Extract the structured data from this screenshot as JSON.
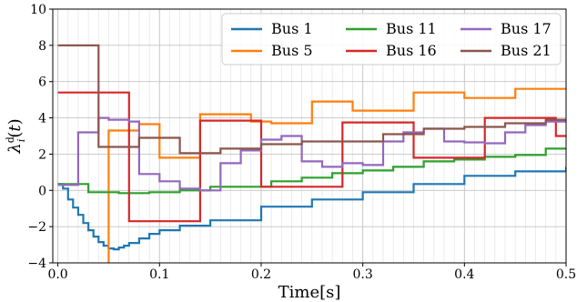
{
  "chart_data": {
    "type": "line",
    "step": true,
    "xlabel": "Time[s]",
    "ylabel": "λ_i^d(t)",
    "xlim": [
      -0.005,
      0.5
    ],
    "ylim": [
      -4,
      10
    ],
    "xticks": [
      0.0,
      0.1,
      0.2,
      0.3,
      0.4,
      0.5
    ],
    "xtick_labels": [
      "0.0",
      "0.1",
      "0.2",
      "0.3",
      "0.4",
      "0.5"
    ],
    "yticks": [
      -4,
      -2,
      0,
      2,
      4,
      6,
      8,
      10
    ],
    "ytick_labels": [
      "−4",
      "−2",
      "0",
      "2",
      "4",
      "6",
      "8",
      "10"
    ],
    "minor_x_step": 0.01,
    "grid": true,
    "legend": {
      "location": "top-right",
      "columns": 3
    },
    "series": [
      {
        "name": "Bus 1",
        "color": "#1f77b4",
        "x": [
          0,
          0.005,
          0.01,
          0.015,
          0.02,
          0.025,
          0.03,
          0.035,
          0.04,
          0.045,
          0.05,
          0.055,
          0.06,
          0.065,
          0.07,
          0.08,
          0.09,
          0.1,
          0.12,
          0.15,
          0.2,
          0.25,
          0.3,
          0.35,
          0.4,
          0.45,
          0.5
        ],
        "y": [
          0.35,
          0.1,
          -0.5,
          -0.95,
          -1.35,
          -1.8,
          -2.2,
          -2.55,
          -2.85,
          -3.05,
          -3.2,
          -3.25,
          -3.15,
          -3.05,
          -2.9,
          -2.65,
          -2.4,
          -2.2,
          -1.95,
          -1.65,
          -0.9,
          -0.5,
          -0.1,
          0.35,
          0.8,
          1.05,
          1.3
        ]
      },
      {
        "name": "Bus 5",
        "color": "#ff7f0e",
        "x": [
          0.05,
          0.05,
          0.06,
          0.08,
          0.1,
          0.12,
          0.14,
          0.19,
          0.21,
          0.25,
          0.29,
          0.35,
          0.4,
          0.45,
          0.5
        ],
        "y": [
          -4,
          3.3,
          3.3,
          3.65,
          1.8,
          1.8,
          4.2,
          3.8,
          3.7,
          4.9,
          4.4,
          5.4,
          5.1,
          5.6,
          5.6
        ]
      },
      {
        "name": "Bus 11",
        "color": "#2ca02c",
        "x": [
          0,
          0.03,
          0.06,
          0.09,
          0.12,
          0.15,
          0.21,
          0.24,
          0.27,
          0.3,
          0.33,
          0.36,
          0.39,
          0.42,
          0.45,
          0.48,
          0.5
        ],
        "y": [
          0.35,
          -0.1,
          -0.15,
          -0.1,
          0,
          0.2,
          0.5,
          0.7,
          0.95,
          1.1,
          1.3,
          1.6,
          1.7,
          1.85,
          1.95,
          2.3,
          2.3
        ]
      },
      {
        "name": "Bus 16",
        "color": "#d62728",
        "x": [
          0,
          0.07,
          0.14,
          0.2,
          0.28,
          0.35,
          0.42,
          0.49,
          0.5
        ],
        "y": [
          5.4,
          -1.7,
          3.85,
          0.2,
          3.75,
          1.8,
          4.0,
          3.0,
          3.0
        ]
      },
      {
        "name": "Bus 17",
        "color": "#9467bd",
        "x": [
          0,
          0.02,
          0.04,
          0.05,
          0.07,
          0.08,
          0.1,
          0.12,
          0.14,
          0.16,
          0.18,
          0.2,
          0.22,
          0.24,
          0.26,
          0.28,
          0.3,
          0.32,
          0.34,
          0.36,
          0.38,
          0.4,
          0.42,
          0.44,
          0.46,
          0.48,
          0.5
        ],
        "y": [
          0.3,
          3.2,
          4.0,
          3.9,
          3.8,
          0.9,
          0.5,
          0.1,
          0,
          1.5,
          2.2,
          2.8,
          3.0,
          1.6,
          1.3,
          1.5,
          1.4,
          2.7,
          3.2,
          3.4,
          2.7,
          2.65,
          2.6,
          3.2,
          3.6,
          3.8,
          3.8
        ]
      },
      {
        "name": "Bus 21",
        "color": "#8c564b",
        "x": [
          0,
          0.04,
          0.08,
          0.12,
          0.16,
          0.2,
          0.24,
          0.28,
          0.32,
          0.36,
          0.4,
          0.44,
          0.48,
          0.5
        ],
        "y": [
          8.0,
          2.4,
          2.9,
          2.05,
          2.3,
          2.55,
          2.7,
          2.7,
          3.1,
          3.4,
          3.5,
          3.7,
          3.9,
          3.9
        ]
      }
    ]
  }
}
